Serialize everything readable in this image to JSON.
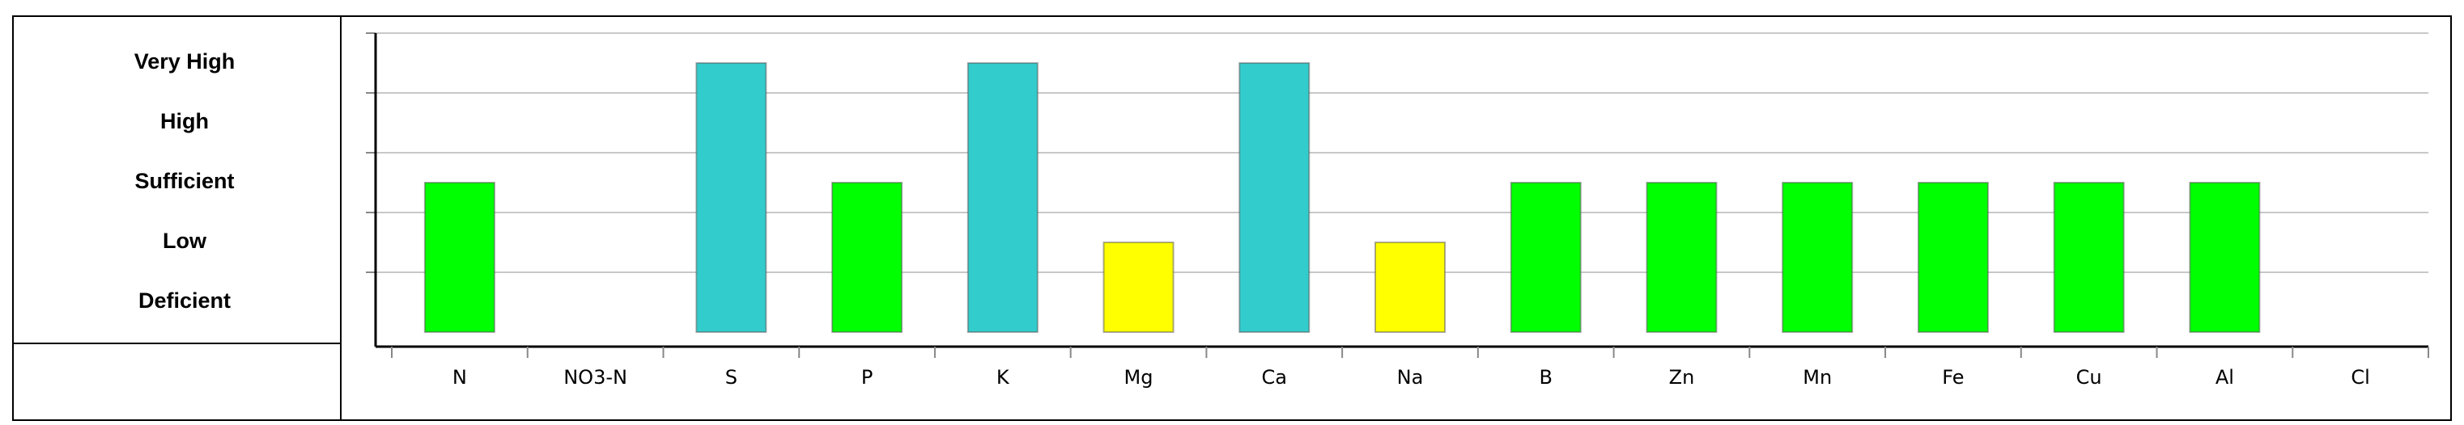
{
  "chart_data": {
    "type": "bar",
    "categories": [
      "N",
      "NO3-N",
      "S",
      "P",
      "K",
      "Mg",
      "Ca",
      "Na",
      "B",
      "Zn",
      "Mn",
      "Fe",
      "Cu",
      "Al",
      "Cl"
    ],
    "values": [
      3,
      null,
      5,
      3,
      5,
      2,
      5,
      2,
      3,
      3,
      3,
      3,
      3,
      3,
      null
    ],
    "colors": [
      "#00ff00",
      null,
      "#33cccc",
      "#00ff00",
      "#33cccc",
      "#ffff00",
      "#33cccc",
      "#ffff00",
      "#00ff00",
      "#00ff00",
      "#00ff00",
      "#00ff00",
      "#00ff00",
      "#00ff00",
      null
    ],
    "ylim": [
      0.5,
      5.5
    ],
    "yticks": [
      {
        "value": 5,
        "label": "Very High"
      },
      {
        "value": 4,
        "label": "High"
      },
      {
        "value": 3,
        "label": "Sufficient"
      },
      {
        "value": 2,
        "label": "Low"
      },
      {
        "value": 1,
        "label": "Deficient"
      }
    ],
    "grid": true
  }
}
